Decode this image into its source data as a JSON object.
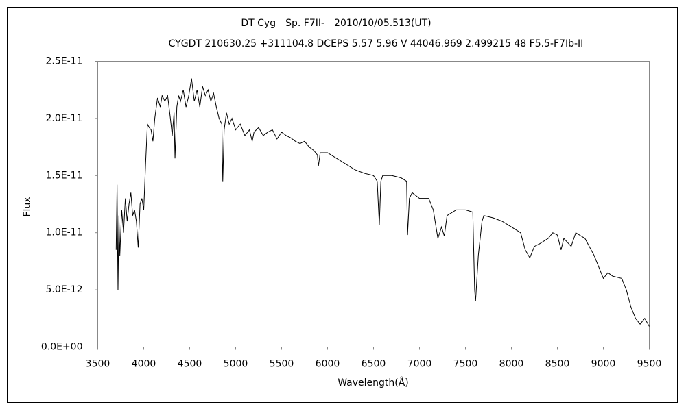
{
  "chart_data": {
    "type": "line",
    "title": "DT Cyg　Sp. F7II-　2010/10/05.513(UT)",
    "subtitle": "CYGDT 210630.25 +311104.8 DCEPS 5.57 5.96 V 44046.969 2.499215 48 F5.5-F7Ib-II",
    "x_label": "Wavelength(Å)",
    "y_label": "Flux",
    "color": "#000000",
    "xlim": [
      3500,
      9500
    ],
    "xticks": [
      3500,
      4000,
      4500,
      5000,
      5500,
      6000,
      6500,
      7000,
      7500,
      8000,
      8500,
      9000,
      9500
    ],
    "ylim": [
      0,
      2.5e-11
    ],
    "yticks": [
      {
        "value": 0,
        "label": "0.0E+00"
      },
      {
        "value": 5e-12,
        "label": "5.0E-12"
      },
      {
        "value": 1e-11,
        "label": "1.0E-11"
      },
      {
        "value": 1.5e-11,
        "label": "1.5E-11"
      },
      {
        "value": 2e-11,
        "label": "2.0E-11"
      },
      {
        "value": 2.5e-11,
        "label": "2.5E-11"
      }
    ],
    "x": [
      3700,
      3710,
      3720,
      3730,
      3740,
      3760,
      3780,
      3800,
      3820,
      3840,
      3860,
      3880,
      3900,
      3920,
      3940,
      3960,
      3980,
      4000,
      4020,
      4040,
      4060,
      4080,
      4100,
      4120,
      4150,
      4180,
      4200,
      4230,
      4260,
      4290,
      4310,
      4330,
      4340,
      4360,
      4380,
      4400,
      4430,
      4460,
      4490,
      4520,
      4550,
      4580,
      4610,
      4640,
      4670,
      4700,
      4730,
      4760,
      4790,
      4820,
      4850,
      4860,
      4875,
      4900,
      4930,
      4960,
      5000,
      5050,
      5100,
      5150,
      5180,
      5200,
      5250,
      5300,
      5350,
      5400,
      5450,
      5500,
      5550,
      5600,
      5650,
      5700,
      5750,
      5800,
      5850,
      5890,
      5900,
      5920,
      6000,
      6100,
      6200,
      6300,
      6400,
      6500,
      6540,
      6563,
      6580,
      6600,
      6700,
      6800,
      6860,
      6870,
      6890,
      6920,
      7000,
      7100,
      7150,
      7200,
      7240,
      7270,
      7300,
      7400,
      7500,
      7580,
      7600,
      7610,
      7640,
      7680,
      7700,
      7800,
      7900,
      8000,
      8100,
      8150,
      8200,
      8250,
      8300,
      8400,
      8450,
      8500,
      8540,
      8570,
      8650,
      8700,
      8800,
      8900,
      8950,
      9000,
      9050,
      9100,
      9200,
      9250,
      9300,
      9350,
      9400,
      9450,
      9500
    ],
    "values": [
      8.5e-12,
      1.42e-11,
      5e-12,
      1.15e-11,
      8e-12,
      1.2e-11,
      1e-11,
      1.3e-11,
      1.1e-11,
      1.25e-11,
      1.35e-11,
      1.15e-11,
      1.2e-11,
      1.1e-11,
      8.7e-12,
      1.25e-11,
      1.3e-11,
      1.2e-11,
      1.6e-11,
      1.95e-11,
      1.92e-11,
      1.9e-11,
      1.8e-11,
      2e-11,
      2.18e-11,
      2.1e-11,
      2.2e-11,
      2.15e-11,
      2.2e-11,
      2e-11,
      1.85e-11,
      2.05e-11,
      1.65e-11,
      2.1e-11,
      2.2e-11,
      2.15e-11,
      2.25e-11,
      2.1e-11,
      2.2e-11,
      2.35e-11,
      2.15e-11,
      2.25e-11,
      2.1e-11,
      2.28e-11,
      2.2e-11,
      2.25e-11,
      2.15e-11,
      2.22e-11,
      2.1e-11,
      2e-11,
      1.95e-11,
      1.45e-11,
      1.9e-11,
      2.05e-11,
      1.95e-11,
      2e-11,
      1.9e-11,
      1.95e-11,
      1.85e-11,
      1.9e-11,
      1.8e-11,
      1.88e-11,
      1.92e-11,
      1.85e-11,
      1.88e-11,
      1.9e-11,
      1.82e-11,
      1.88e-11,
      1.85e-11,
      1.83e-11,
      1.8e-11,
      1.78e-11,
      1.8e-11,
      1.75e-11,
      1.72e-11,
      1.68e-11,
      1.58e-11,
      1.7e-11,
      1.7e-11,
      1.65e-11,
      1.6e-11,
      1.55e-11,
      1.52e-11,
      1.5e-11,
      1.45e-11,
      1.07e-11,
      1.45e-11,
      1.5e-11,
      1.5e-11,
      1.48e-11,
      1.45e-11,
      9.8e-12,
      1.3e-11,
      1.35e-11,
      1.3e-11,
      1.3e-11,
      1.2e-11,
      9.5e-12,
      1.05e-11,
      9.7e-12,
      1.15e-11,
      1.2e-11,
      1.2e-11,
      1.18e-11,
      5e-12,
      4e-12,
      8e-12,
      1.1e-11,
      1.15e-11,
      1.13e-11,
      1.1e-11,
      1.05e-11,
      1e-11,
      8.5e-12,
      7.8e-12,
      8.8e-12,
      9e-12,
      9.5e-12,
      1e-11,
      9.8e-12,
      8.5e-12,
      9.5e-12,
      8.8e-12,
      1e-11,
      9.5e-12,
      8e-12,
      7e-12,
      6e-12,
      6.5e-12,
      6.2e-12,
      6e-12,
      5e-12,
      3.5e-12,
      2.5e-12,
      2e-12,
      2.5e-12,
      1.8e-12
    ]
  }
}
